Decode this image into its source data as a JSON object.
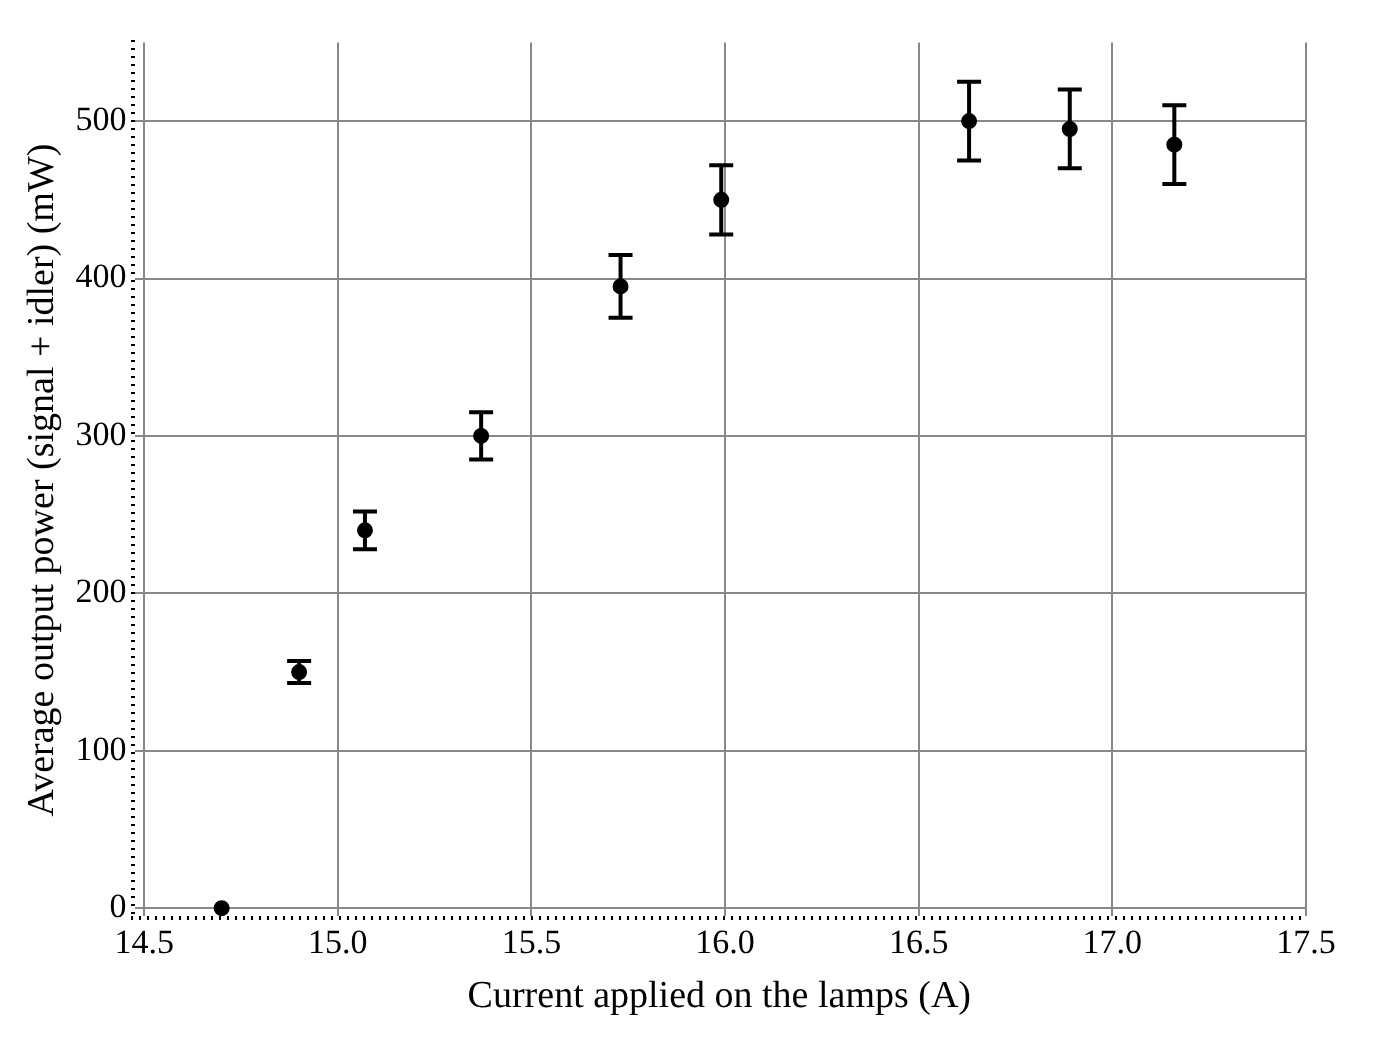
{
  "chart_data": {
    "type": "scatter",
    "xlabel": "Current applied on the lamps (A)",
    "ylabel": "Average output power (signal + idler) (mW)",
    "x": [
      14.7,
      14.9,
      15.07,
      15.37,
      15.73,
      15.99,
      16.63,
      16.89,
      17.16
    ],
    "series": [
      {
        "color": "#000000",
        "values": [
          0,
          150,
          240,
          300,
          395,
          450,
          500,
          495,
          485
        ],
        "errors": [
          null,
          7,
          12,
          15,
          20,
          22,
          25,
          25,
          25
        ]
      }
    ],
    "xlim": [
      14.47,
      17.5
    ],
    "xticks": [
      {
        "value": 14.5,
        "label": "14.5"
      },
      {
        "value": 15,
        "label": "15.0"
      },
      {
        "value": 15.5,
        "label": "15.5"
      },
      {
        "value": 16,
        "label": "16.0"
      },
      {
        "value": 16.5,
        "label": "16.5"
      },
      {
        "value": 17,
        "label": "17.0"
      },
      {
        "value": 17.5,
        "label": "17.5"
      }
    ],
    "ylim": [
      -6,
      550
    ],
    "yticks": [
      0,
      100,
      200,
      300,
      400,
      500
    ],
    "grid": true,
    "marker": "circle",
    "legend": false
  }
}
